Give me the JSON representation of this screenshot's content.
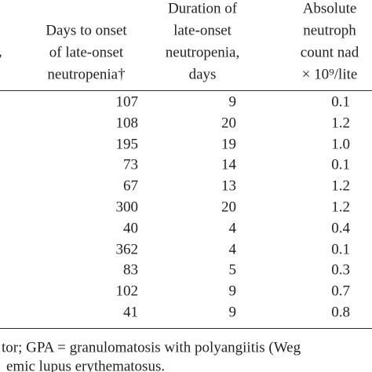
{
  "table": {
    "fragment": ",",
    "headers": [
      [
        "Days to onset",
        "of late-onset",
        "neutropenia†"
      ],
      [
        "Duration of",
        "late-onset",
        "neutropenia,",
        "days"
      ],
      [
        "Absolute",
        "neutroph",
        "count nad",
        "× 10⁹/lite"
      ]
    ],
    "rows": [
      [
        "107",
        "9",
        "0.1"
      ],
      [
        "108",
        "20",
        "1.2"
      ],
      [
        "195",
        "19",
        "1.0"
      ],
      [
        "73",
        "14",
        "0.1"
      ],
      [
        "67",
        "13",
        "1.2"
      ],
      [
        "300",
        "20",
        "1.2"
      ],
      [
        "40",
        "4",
        "0.4"
      ],
      [
        "362",
        "4",
        "0.1"
      ],
      [
        "83",
        "5",
        "0.3"
      ],
      [
        "102",
        "9",
        "0.7"
      ],
      [
        "41",
        "9",
        "0.8"
      ]
    ]
  },
  "footnote": [
    "tor; GPA = granulomatosis with polyangiitis (Weg",
    "emic lupus erythematosus."
  ]
}
